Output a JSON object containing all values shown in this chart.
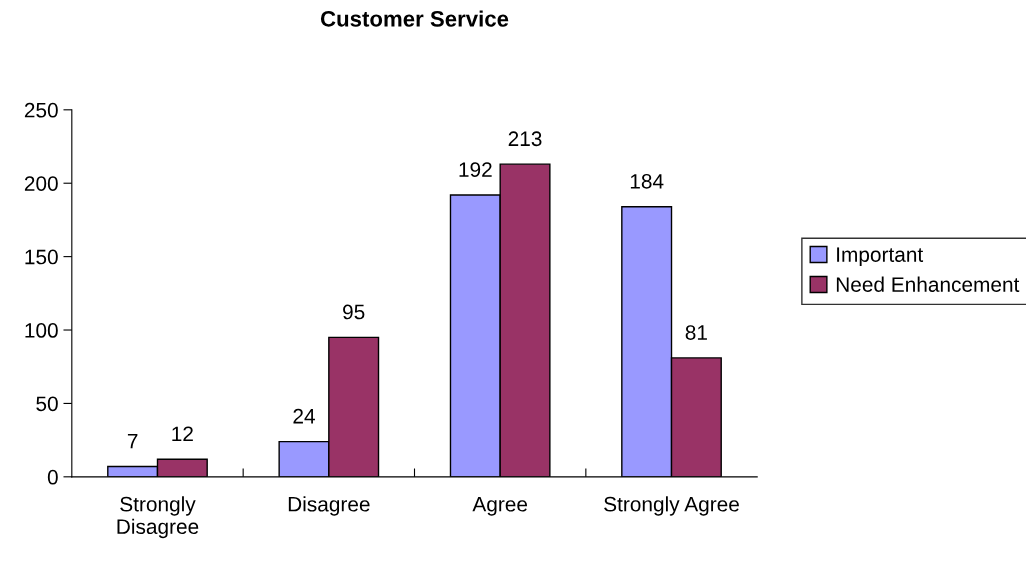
{
  "chart_data": {
    "type": "bar",
    "title": "Customer Service",
    "categories": [
      "Strongly\nDisagree",
      "Disagree",
      "Agree",
      "Strongly Agree"
    ],
    "series": [
      {
        "name": "Important",
        "color": "#9999ff",
        "values": [
          7,
          24,
          192,
          184
        ]
      },
      {
        "name": "Need Enhancement",
        "color": "#993366",
        "values": [
          12,
          95,
          213,
          81
        ]
      }
    ],
    "ylim": [
      0,
      250
    ],
    "yticks": [
      0,
      50,
      100,
      150,
      200,
      250
    ],
    "grid": false,
    "legend": "right",
    "data_labels": true
  }
}
